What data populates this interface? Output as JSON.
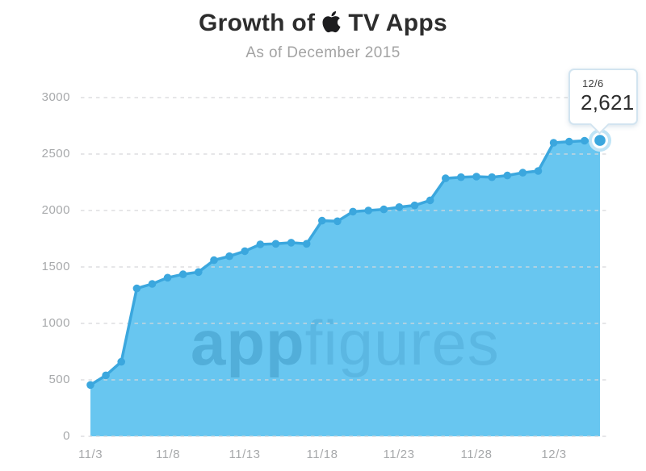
{
  "header": {
    "title_prefix": "Growth of",
    "title_suffix": "TV Apps",
    "logo_icon": "apple-logo",
    "subtitle": "As of December 2015"
  },
  "watermark": {
    "bold": "app",
    "light": "figures"
  },
  "tooltip": {
    "date": "12/6",
    "value": "2,621"
  },
  "colors": {
    "area_fill": "#68c6f0",
    "line": "#3ba7de",
    "dot": "#3ba7de",
    "highlight_halo": "#bfe4f6",
    "grid": "#d6d8da",
    "axis_text": "#a7a9ab",
    "title_text": "#2d2d2d",
    "subtitle_text": "#a3a3a3",
    "tooltip_border": "#d2e4f0",
    "tooltip_text": "#2d2d2d",
    "watermark_bold": "#4fa9d5",
    "watermark_light": "#58b3df"
  },
  "chart_data": {
    "type": "area",
    "title": "Growth of Apple TV Apps",
    "subtitle": "As of December 2015",
    "xlabel": "",
    "ylabel": "",
    "ylim": [
      0,
      3000
    ],
    "y_ticks": [
      0,
      500,
      1000,
      1500,
      2000,
      2500,
      3000
    ],
    "x_tick_labels": [
      "11/3",
      "11/8",
      "11/13",
      "11/18",
      "11/23",
      "11/28",
      "12/3"
    ],
    "grid": "dashed-horizontal",
    "legend_position": "none",
    "dates": [
      "11/3",
      "11/4",
      "11/5",
      "11/6",
      "11/7",
      "11/8",
      "11/9",
      "11/10",
      "11/11",
      "11/12",
      "11/13",
      "11/14",
      "11/15",
      "11/16",
      "11/17",
      "11/18",
      "11/19",
      "11/20",
      "11/21",
      "11/22",
      "11/23",
      "11/24",
      "11/25",
      "11/26",
      "11/27",
      "11/28",
      "11/29",
      "11/30",
      "12/1",
      "12/2",
      "12/3",
      "12/4",
      "12/5",
      "12/6"
    ],
    "values": [
      455,
      540,
      660,
      1310,
      1350,
      1405,
      1435,
      1455,
      1560,
      1595,
      1640,
      1700,
      1705,
      1715,
      1705,
      1910,
      1905,
      1990,
      2000,
      2010,
      2030,
      2045,
      2090,
      2285,
      2295,
      2300,
      2295,
      2310,
      2335,
      2350,
      2600,
      2610,
      2618,
      2621
    ],
    "highlight": {
      "date": "12/6",
      "value": 2621
    }
  }
}
